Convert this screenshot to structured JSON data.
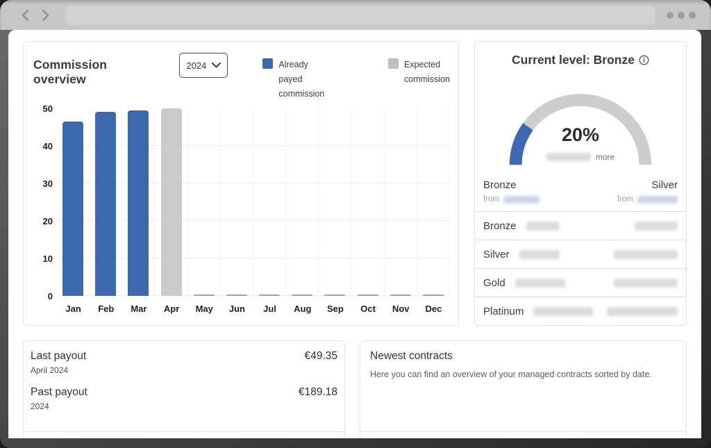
{
  "commission": {
    "title": "Commission overview",
    "year_selected": "2024",
    "legend": [
      {
        "line1": "Already payed",
        "line2": "commission",
        "color": "#3b68af"
      },
      {
        "line1": "Expected",
        "line2": "commission",
        "color": "#bcc0c5"
      }
    ]
  },
  "chart_data": {
    "type": "bar",
    "title": "Commission overview",
    "categories": [
      "Jan",
      "Feb",
      "Mar",
      "Apr",
      "May",
      "Jun",
      "Jul",
      "Aug",
      "Sep",
      "Oct",
      "Nov",
      "Dec"
    ],
    "series": [
      {
        "name": "Already payed commission",
        "color": "#3b68af",
        "values": [
          46.5,
          49,
          49.5,
          0,
          0,
          0,
          0,
          0,
          0,
          0,
          0,
          0
        ]
      },
      {
        "name": "Expected commission",
        "color": "#cbcbcb",
        "values": [
          0,
          0,
          0,
          50,
          0.3,
          0.3,
          0.3,
          0.3,
          0.3,
          0.3,
          0.3,
          0.3
        ]
      }
    ],
    "xlabel": "",
    "ylabel": "",
    "ylim": [
      0,
      50
    ],
    "yticks": [
      0,
      10,
      20,
      30,
      40,
      50
    ],
    "grid": true,
    "legend_position": "top"
  },
  "level": {
    "title": "Current level: Bronze",
    "gauge": {
      "percent": 20,
      "percent_label": "20%",
      "more_label": "more",
      "left": {
        "name": "Bronze",
        "from_label": "from"
      },
      "right": {
        "name": "Silver",
        "from_label": "from"
      }
    },
    "tiers": [
      "Bronze",
      "Silver",
      "Gold",
      "Platinum"
    ]
  },
  "payouts": {
    "items": [
      {
        "label": "Last payout",
        "sublabel": "April 2024",
        "amount": "€49.35"
      },
      {
        "label": "Past payout",
        "sublabel": "2024",
        "amount": "€189.18"
      }
    ]
  },
  "contracts": {
    "title": "Newest contracts",
    "description": "Here you can find an overview of your managed contracts sorted by date."
  },
  "colors": {
    "accent_blue": "#3b68af",
    "expected_gray": "#cbcbcb",
    "gauge_track": "#cdcdcd",
    "chrome_gray": "#c7c7c7"
  }
}
